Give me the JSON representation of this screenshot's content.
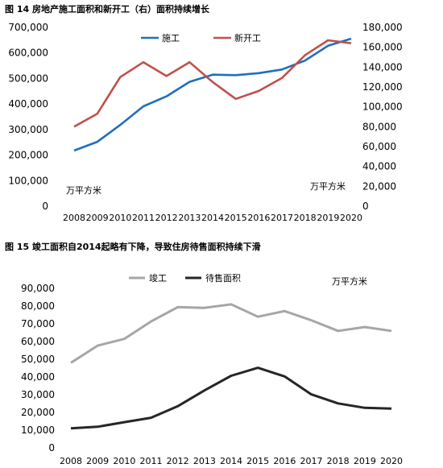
{
  "figures": [
    {
      "title": "图 14 房地产施工面积和新开工（右）面积持续增长"
    },
    {
      "title": "图 15 竣工面积自2014起略有下降，导致住房待售面积持续下滑"
    }
  ],
  "chart_data": [
    {
      "type": "line",
      "categories": [
        "2008",
        "2009",
        "2010",
        "2011",
        "2012",
        "2013",
        "2014",
        "2015",
        "2016",
        "2017",
        "2018",
        "2019",
        "2020"
      ],
      "series": [
        {
          "name": "施工",
          "axis": "left",
          "color": "#1f6fbf",
          "values": [
            218000,
            252000,
            318000,
            391000,
            430000,
            487000,
            515000,
            513000,
            521000,
            535000,
            570000,
            628000,
            656000
          ]
        },
        {
          "name": "新开工",
          "axis": "right",
          "color": "#c0504d",
          "values": [
            80000,
            93000,
            130000,
            145000,
            131000,
            145000,
            125000,
            108000,
            116000,
            129000,
            152000,
            167000,
            164000
          ]
        }
      ],
      "y_left": {
        "lim": [
          0,
          700000
        ],
        "ticks": [
          "0",
          "100,000",
          "200,000",
          "300,000",
          "400,000",
          "500,000",
          "600,000",
          "700,000"
        ]
      },
      "y_right": {
        "lim": [
          0,
          180000
        ],
        "ticks": [
          "0",
          "20,000",
          "40,000",
          "60,000",
          "80,000",
          "100,000",
          "120,000",
          "140,000",
          "160,000",
          "180,000"
        ]
      },
      "unit_left": "万平方米",
      "unit_right": "万平方米",
      "legend": "top-center",
      "grid": false
    },
    {
      "type": "line",
      "categories": [
        "2008",
        "2009",
        "2010",
        "2011",
        "2012",
        "2013",
        "2014",
        "2015",
        "2016",
        "2017",
        "2018",
        "2019",
        "2020"
      ],
      "series": [
        {
          "name": "竣工",
          "color": "#a6a6a6",
          "values": [
            48000,
            57700,
            61500,
            71300,
            79400,
            79000,
            81000,
            74000,
            77200,
            72000,
            66000,
            68200,
            66000
          ]
        },
        {
          "name": "待售面积",
          "color": "#262626",
          "values": [
            11000,
            11900,
            14500,
            17000,
            23500,
            32400,
            40700,
            45200,
            40300,
            30200,
            25100,
            22600,
            22200
          ]
        }
      ],
      "y_left": {
        "lim": [
          0,
          90000
        ],
        "ticks": [
          "0",
          "10,000",
          "20,000",
          "30,000",
          "40,000",
          "50,000",
          "60,000",
          "70,000",
          "80,000",
          "90,000"
        ]
      },
      "unit": "万平方米",
      "legend": "top-center",
      "grid": false
    }
  ]
}
